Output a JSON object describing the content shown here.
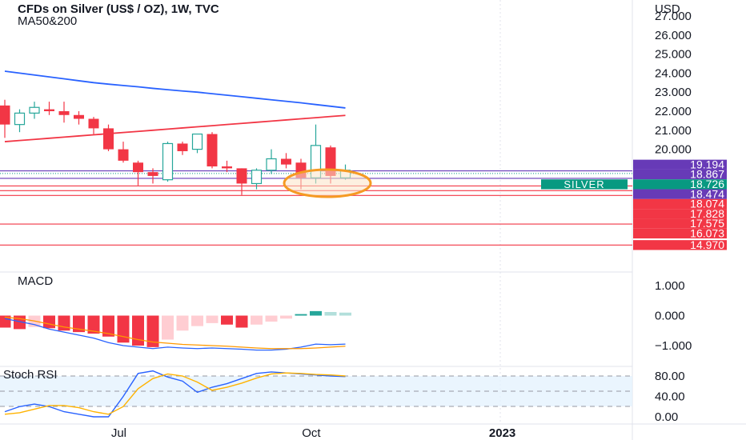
{
  "header": {
    "title": "CFDs on Silver (US$ / OZ), 1W, TVC",
    "indicator": "MA50&200",
    "currency": "USD"
  },
  "colors": {
    "up": "#26a69a",
    "down": "#f23645",
    "ma50": "#f23645",
    "ma200": "#2962ff",
    "macd": "#2962ff",
    "signal": "#ff9800",
    "hist_neg_strong": "#f23645",
    "hist_neg_weak": "#ffcdd2",
    "hist_pos_strong": "#26a69a",
    "hist_pos_weak": "#b2dfdb",
    "rsi_k": "#2962ff",
    "rsi_d": "#ffb300",
    "rsi_band": "#e3f2fd",
    "badge_red": "#f23645",
    "badge_purple": "#673ab7",
    "badge_teal": "#089981",
    "highlight": "#f59a23"
  },
  "chart_data": [
    {
      "type": "candlestick",
      "title": "CFDs on Silver (US$ / OZ), 1W, TVC",
      "ylabel": "USD",
      "ylim": [
        14.5,
        27.0
      ],
      "yticks": [
        27.0,
        26.0,
        25.0,
        24.0,
        23.0,
        22.0,
        21.0,
        20.0
      ],
      "ytick_labels": [
        "27.000",
        "26.000",
        "25.000",
        "24.000",
        "23.000",
        "22.000",
        "21.000",
        "20.000"
      ],
      "xticks": [
        {
          "label": "Jul",
          "index": 7.7
        },
        {
          "label": "Oct",
          "index": 20.7
        },
        {
          "label": "2023",
          "index": 33.6
        }
      ],
      "candles": [
        {
          "o": 22.3,
          "h": 22.6,
          "l": 20.6,
          "c": 21.3
        },
        {
          "o": 21.3,
          "h": 22.1,
          "l": 20.9,
          "c": 21.9
        },
        {
          "o": 21.9,
          "h": 22.5,
          "l": 21.6,
          "c": 22.2
        },
        {
          "o": 22.1,
          "h": 22.5,
          "l": 21.8,
          "c": 22.0
        },
        {
          "o": 22.0,
          "h": 22.5,
          "l": 21.4,
          "c": 21.8
        },
        {
          "o": 21.8,
          "h": 22.0,
          "l": 21.3,
          "c": 21.6
        },
        {
          "o": 21.6,
          "h": 21.7,
          "l": 20.8,
          "c": 21.1
        },
        {
          "o": 21.1,
          "h": 21.3,
          "l": 19.9,
          "c": 20.0
        },
        {
          "o": 20.0,
          "h": 20.4,
          "l": 19.3,
          "c": 19.4
        },
        {
          "o": 19.3,
          "h": 19.4,
          "l": 18.1,
          "c": 18.8
        },
        {
          "o": 18.8,
          "h": 19.0,
          "l": 18.2,
          "c": 18.6
        },
        {
          "o": 18.4,
          "h": 20.4,
          "l": 18.3,
          "c": 20.3
        },
        {
          "o": 20.3,
          "h": 20.4,
          "l": 19.7,
          "c": 19.9
        },
        {
          "o": 20.0,
          "h": 20.8,
          "l": 19.8,
          "c": 20.8
        },
        {
          "o": 20.8,
          "h": 20.9,
          "l": 19.0,
          "c": 19.1
        },
        {
          "o": 19.1,
          "h": 19.4,
          "l": 18.8,
          "c": 19.0
        },
        {
          "o": 19.0,
          "h": 19.0,
          "l": 17.6,
          "c": 18.2
        },
        {
          "o": 18.2,
          "h": 19.0,
          "l": 17.9,
          "c": 18.9
        },
        {
          "o": 18.9,
          "h": 20.0,
          "l": 18.7,
          "c": 19.5
        },
        {
          "o": 19.5,
          "h": 19.8,
          "l": 19.0,
          "c": 19.2
        },
        {
          "o": 19.3,
          "h": 19.5,
          "l": 17.9,
          "c": 18.5
        },
        {
          "o": 18.5,
          "h": 21.3,
          "l": 18.2,
          "c": 20.2
        },
        {
          "o": 20.1,
          "h": 20.2,
          "l": 18.2,
          "c": 18.6
        },
        {
          "o": 18.5,
          "h": 19.2,
          "l": 18.4,
          "c": 18.9
        }
      ],
      "series": [
        {
          "name": "",
          "style": "ma50",
          "values": [
            20.4,
            20.46,
            20.52,
            20.58,
            20.64,
            20.7,
            20.76,
            20.82,
            20.88,
            20.94,
            21.0,
            21.06,
            21.12,
            21.18,
            21.24,
            21.3,
            21.36,
            21.42,
            21.48,
            21.54,
            21.6,
            21.66,
            21.72,
            21.78
          ]
        },
        {
          "name": "",
          "style": "ma200",
          "values": [
            24.1,
            24.0,
            23.9,
            23.8,
            23.7,
            23.6,
            23.5,
            23.42,
            23.35,
            23.28,
            23.2,
            23.13,
            23.06,
            23.0,
            22.92,
            22.84,
            22.76,
            22.68,
            22.6,
            22.52,
            22.44,
            22.35,
            22.26,
            22.17
          ]
        }
      ],
      "hlines": [
        {
          "value": 18.867,
          "color": "#673ab7"
        },
        {
          "value": 18.474,
          "color": "#673ab7"
        },
        {
          "value": 18.074,
          "color": "#f23645"
        },
        {
          "value": 17.828,
          "color": "#f23645"
        },
        {
          "value": 17.575,
          "color": "#f23645"
        },
        {
          "value": 16.073,
          "color": "#f23645"
        },
        {
          "value": 14.97,
          "color": "#f23645"
        }
      ],
      "price_labels": [
        {
          "text": "19.194",
          "value": 19.194,
          "color": "#673ab7"
        },
        {
          "text": "18.867",
          "value": 18.867,
          "color": "#673ab7"
        },
        {
          "text": "18.726",
          "value": 18.726,
          "color": "#089981",
          "tag": "SILVER"
        },
        {
          "text": "18.474",
          "value": 18.474,
          "color": "#673ab7"
        },
        {
          "text": "18.074",
          "value": 18.074,
          "color": "#f23645"
        },
        {
          "text": "17.828",
          "value": 17.828,
          "color": "#f23645"
        },
        {
          "text": "17.575",
          "value": 17.575,
          "color": "#f23645"
        },
        {
          "text": "16.073",
          "value": 16.073,
          "color": "#f23645"
        },
        {
          "text": "14.970",
          "value": 14.97,
          "color": "#f23645"
        }
      ],
      "last_price": 18.726
    },
    {
      "type": "bar",
      "title": "MACD",
      "ylim": [
        -1.5,
        1.3
      ],
      "yticks": [
        1.0,
        0.0,
        -1.0
      ],
      "ytick_labels": [
        "1.000",
        "0.000",
        "−1.000"
      ],
      "histogram": [
        -0.4,
        -0.45,
        -0.38,
        -0.42,
        -0.5,
        -0.55,
        -0.6,
        -0.7,
        -0.9,
        -1.0,
        -1.05,
        -0.8,
        -0.5,
        -0.35,
        -0.25,
        -0.3,
        -0.4,
        -0.3,
        -0.2,
        -0.1,
        0.05,
        0.15,
        0.12,
        0.1
      ],
      "series": [
        {
          "name": "",
          "style": "macd",
          "values": [
            -0.1,
            -0.2,
            -0.3,
            -0.45,
            -0.55,
            -0.65,
            -0.75,
            -0.9,
            -1.0,
            -1.05,
            -1.1,
            -1.05,
            -1.08,
            -1.1,
            -1.08,
            -1.1,
            -1.12,
            -1.15,
            -1.15,
            -1.12,
            -1.05,
            -0.95,
            -0.97,
            -0.95
          ]
        },
        {
          "name": "",
          "style": "signal",
          "values": [
            -0.05,
            -0.1,
            -0.18,
            -0.28,
            -0.38,
            -0.45,
            -0.52,
            -0.6,
            -0.7,
            -0.8,
            -0.88,
            -0.92,
            -0.96,
            -0.98,
            -1.0,
            -1.02,
            -1.05,
            -1.08,
            -1.1,
            -1.1,
            -1.1,
            -1.08,
            -1.05,
            -1.02
          ]
        }
      ]
    },
    {
      "type": "line",
      "title": "Stoch RSI",
      "ylim": [
        -5,
        105
      ],
      "yticks": [
        80.0,
        40.0,
        0.0
      ],
      "ytick_labels": [
        "80.00",
        "40.00",
        "0.00"
      ],
      "band": [
        20,
        80
      ],
      "series": [
        {
          "name": "",
          "style": "k",
          "values": [
            10,
            20,
            25,
            20,
            10,
            5,
            0,
            0,
            40,
            85,
            90,
            78,
            70,
            48,
            58,
            65,
            75,
            85,
            88,
            86,
            84,
            82,
            80,
            79
          ]
        },
        {
          "name": "",
          "style": "d",
          "values": [
            5,
            8,
            15,
            22,
            22,
            18,
            10,
            5,
            20,
            55,
            75,
            84,
            80,
            68,
            52,
            58,
            66,
            76,
            84,
            86,
            85,
            83,
            82,
            80
          ]
        }
      ]
    }
  ]
}
